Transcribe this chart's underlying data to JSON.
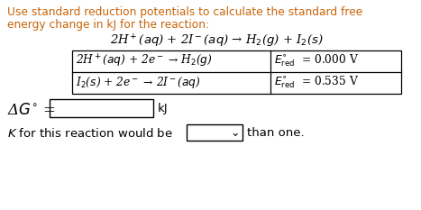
{
  "bg_color": "#ffffff",
  "text_color": "#000000",
  "orange_color": "#c8640a",
  "title_line1": "Use standard reduction potentials to calculate the standard free",
  "title_line2": "energy change in kJ for the reaction:",
  "main_reaction": "2H$^+$($aq$) + 2I$^-$($aq$) → H$_2$($g$) + I$_2$($s$)",
  "row1_left": "2H$^+$($aq$) + 2e$^-$ → H$_2$($g$)",
  "row1_right": "$E^{\\circ}_{\\mathrm{red}}$  = 0.000 V",
  "row2_left": "I$_2$($s$) + 2e$^-$ → 2I$^-$($aq$)",
  "row2_right": "$E^{\\circ}_{\\mathrm{red}}$  = 0.535 V",
  "dg_label": "Δ$G^{\\circ}$ =",
  "dg_unit": "kJ",
  "k_text_before": "$K$ for this reaction would be",
  "k_text_after": "than one.",
  "title_fontsize": 8.8,
  "body_fontsize": 9.5,
  "table_fontsize": 8.8
}
